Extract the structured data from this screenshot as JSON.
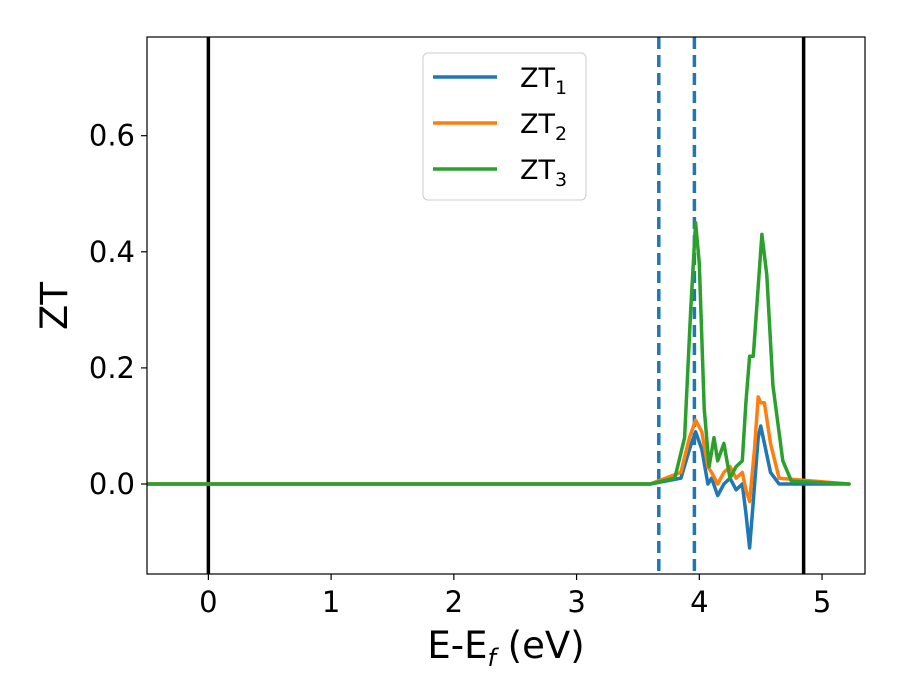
{
  "chart_data": {
    "type": "line",
    "title": "",
    "xlabel": {
      "main": "E-E",
      "sub": "f",
      "tail": " (eV)"
    },
    "ylabel": "ZT",
    "xlim": [
      -0.5,
      5.35
    ],
    "ylim": [
      -0.155,
      0.77
    ],
    "x_ticks": [
      0,
      1,
      2,
      3,
      4,
      5
    ],
    "y_ticks": [
      0.0,
      0.2,
      0.4,
      0.6
    ],
    "x_tick_labels": [
      "0",
      "1",
      "2",
      "3",
      "4",
      "5"
    ],
    "y_tick_labels": [
      "0.0",
      "0.2",
      "0.4",
      "0.6"
    ],
    "grid": false,
    "legend_position": "top-center",
    "vlines": [
      {
        "x": 0.0,
        "style": "solid",
        "color": "#000000"
      },
      {
        "x": 4.85,
        "style": "solid",
        "color": "#000000"
      },
      {
        "x": 3.67,
        "style": "dashed",
        "color": "#1f77b4"
      },
      {
        "x": 3.96,
        "style": "dashed",
        "color": "#1f77b4"
      }
    ],
    "series": [
      {
        "name": "ZT",
        "sub": "1",
        "color": "#1f77b4",
        "points": [
          [
            -0.5,
            0
          ],
          [
            3.6,
            0
          ],
          [
            3.85,
            0.01
          ],
          [
            3.92,
            0.06
          ],
          [
            3.97,
            0.09
          ],
          [
            4.02,
            0.06
          ],
          [
            4.07,
            0.0
          ],
          [
            4.1,
            0.01
          ],
          [
            4.15,
            -0.02
          ],
          [
            4.2,
            0.0
          ],
          [
            4.25,
            0.01
          ],
          [
            4.3,
            -0.01
          ],
          [
            4.35,
            0.0
          ],
          [
            4.38,
            -0.05
          ],
          [
            4.41,
            -0.11
          ],
          [
            4.44,
            -0.03
          ],
          [
            4.48,
            0.08
          ],
          [
            4.5,
            0.1
          ],
          [
            4.53,
            0.07
          ],
          [
            4.58,
            0.02
          ],
          [
            4.65,
            0.0
          ],
          [
            5.22,
            0
          ]
        ]
      },
      {
        "name": "ZT",
        "sub": "2",
        "color": "#ff7f0e",
        "points": [
          [
            -0.5,
            0
          ],
          [
            3.6,
            0
          ],
          [
            3.85,
            0.02
          ],
          [
            3.92,
            0.08
          ],
          [
            3.97,
            0.11
          ],
          [
            4.02,
            0.09
          ],
          [
            4.07,
            0.03
          ],
          [
            4.1,
            0.02
          ],
          [
            4.15,
            0.0
          ],
          [
            4.2,
            0.02
          ],
          [
            4.25,
            0.03
          ],
          [
            4.3,
            0.01
          ],
          [
            4.35,
            0.02
          ],
          [
            4.38,
            -0.01
          ],
          [
            4.41,
            -0.03
          ],
          [
            4.45,
            0.06
          ],
          [
            4.48,
            0.15
          ],
          [
            4.5,
            0.14
          ],
          [
            4.53,
            0.14
          ],
          [
            4.58,
            0.07
          ],
          [
            4.65,
            0.01
          ],
          [
            5.22,
            0
          ]
        ]
      },
      {
        "name": "ZT",
        "sub": "3",
        "color": "#2ca02c",
        "points": [
          [
            -0.5,
            0
          ],
          [
            3.6,
            0
          ],
          [
            3.8,
            0.01
          ],
          [
            3.88,
            0.08
          ],
          [
            3.93,
            0.3
          ],
          [
            3.97,
            0.45
          ],
          [
            4.0,
            0.38
          ],
          [
            4.04,
            0.13
          ],
          [
            4.08,
            0.03
          ],
          [
            4.12,
            0.08
          ],
          [
            4.15,
            0.04
          ],
          [
            4.2,
            0.07
          ],
          [
            4.25,
            0.01
          ],
          [
            4.3,
            0.03
          ],
          [
            4.35,
            0.04
          ],
          [
            4.38,
            0.14
          ],
          [
            4.41,
            0.22
          ],
          [
            4.44,
            0.22
          ],
          [
            4.48,
            0.34
          ],
          [
            4.51,
            0.43
          ],
          [
            4.55,
            0.36
          ],
          [
            4.6,
            0.17
          ],
          [
            4.68,
            0.04
          ],
          [
            4.75,
            0.005
          ],
          [
            5.22,
            0
          ]
        ]
      }
    ]
  }
}
